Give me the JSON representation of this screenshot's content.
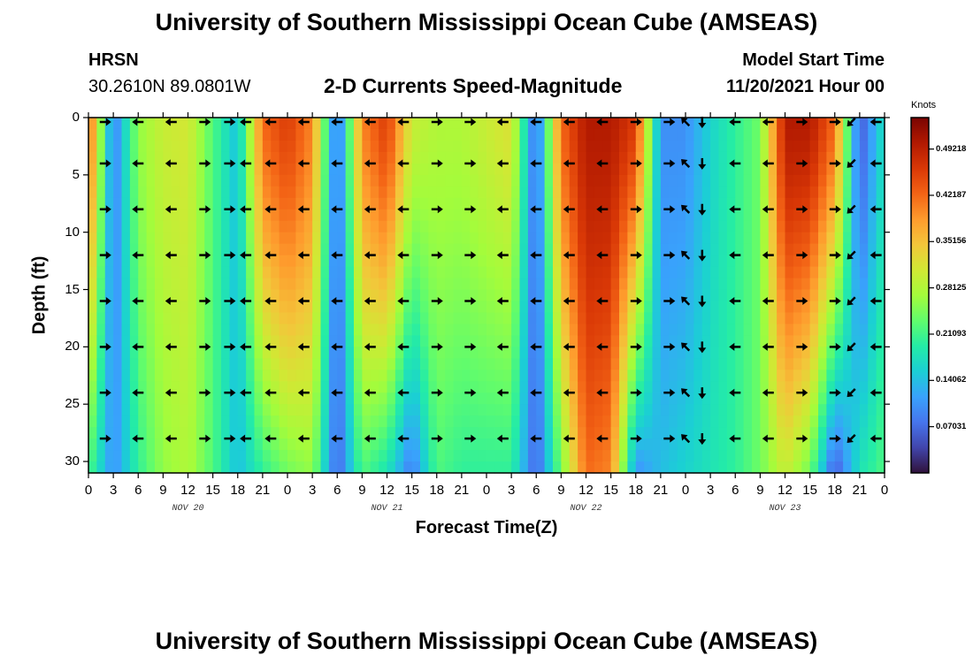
{
  "header": {
    "title": "University of Southern Mississippi Ocean Cube (AMSEAS)",
    "station": "HRSN",
    "coords": "30.2610N  89.0801W",
    "subtitle": "2-D Currents Speed-Magnitude",
    "model_label": "Model Start Time",
    "model_time": "11/20/2021 Hour 00"
  },
  "footer_title": "University of Southern Mississippi Ocean Cube (AMSEAS)",
  "chart_data": {
    "type": "heatmap",
    "title": "2-D Currents Speed-Magnitude",
    "xlabel": "Forecast Time(Z)",
    "ylabel": "Depth (ft)",
    "ylim": [
      0,
      31
    ],
    "yticks": [
      "0",
      "5",
      "10",
      "15",
      "20",
      "25",
      "30"
    ],
    "xticks": [
      "0",
      "3",
      "6",
      "9",
      "12",
      "15",
      "18",
      "21",
      "0",
      "3",
      "6",
      "9",
      "12",
      "15",
      "18",
      "21",
      "0",
      "3",
      "6",
      "9",
      "12",
      "15",
      "18",
      "21",
      "0",
      "3",
      "6",
      "9",
      "12",
      "15",
      "18",
      "21",
      "0"
    ],
    "date_labels": [
      "NOV 20",
      "NOV 21",
      "NOV 22",
      "NOV 23"
    ],
    "colorbar": {
      "label": "Knots",
      "ticks": [
        "0.49218",
        "0.42187",
        "0.35156",
        "0.28125",
        "0.21093",
        "0.14062",
        "0.07031"
      ],
      "range": [
        0,
        0.54
      ],
      "colors": [
        "#30123b",
        "#4145ab",
        "#4675ed",
        "#39a2fc",
        "#1bcfd4",
        "#24eca6",
        "#61fc6c",
        "#a4fc3b",
        "#d1e834",
        "#f3c63a",
        "#fe9b2d",
        "#f36315",
        "#d93806",
        "#b11901",
        "#7a0402"
      ]
    },
    "time_hours": [
      0,
      3,
      6,
      9,
      12,
      15,
      18,
      21,
      24,
      27,
      30,
      33,
      36,
      39,
      42,
      45,
      48,
      51,
      54,
      57,
      60,
      63,
      66,
      69,
      72,
      75,
      78,
      81,
      84,
      87,
      90,
      93,
      96
    ],
    "surface_speed": [
      0.44,
      0.08,
      0.26,
      0.3,
      0.31,
      0.22,
      0.14,
      0.42,
      0.46,
      0.4,
      0.06,
      0.4,
      0.46,
      0.3,
      0.28,
      0.28,
      0.3,
      0.32,
      0.06,
      0.42,
      0.5,
      0.5,
      0.46,
      0.1,
      0.1,
      0.16,
      0.2,
      0.24,
      0.5,
      0.5,
      0.42,
      0.05,
      0.18
    ],
    "bottom_speed": [
      0.22,
      0.1,
      0.2,
      0.26,
      0.28,
      0.22,
      0.14,
      0.2,
      0.24,
      0.26,
      0.06,
      0.22,
      0.18,
      0.08,
      0.22,
      0.2,
      0.2,
      0.2,
      0.06,
      0.24,
      0.42,
      0.4,
      0.1,
      0.14,
      0.16,
      0.18,
      0.2,
      0.24,
      0.3,
      0.24,
      0.05,
      0.18,
      0.22
    ],
    "arrow_depths": [
      0,
      4,
      8,
      12,
      16,
      20,
      24,
      28
    ],
    "arrow_hours": [
      2,
      6,
      10,
      14,
      17,
      19,
      22,
      26,
      30,
      34,
      38,
      42,
      46,
      50,
      54,
      58,
      62,
      66,
      70,
      72,
      74,
      78,
      82,
      86,
      90,
      92,
      95
    ],
    "arrow_direction_by_hour": [
      "E",
      "W",
      "W",
      "E",
      "E",
      "W",
      "W",
      "W",
      "W",
      "W",
      "W",
      "E",
      "E",
      "W",
      "W",
      "W",
      "W",
      "E",
      "E",
      "NW",
      "S",
      "W",
      "W",
      "E",
      "E",
      "SW",
      "W"
    ]
  }
}
